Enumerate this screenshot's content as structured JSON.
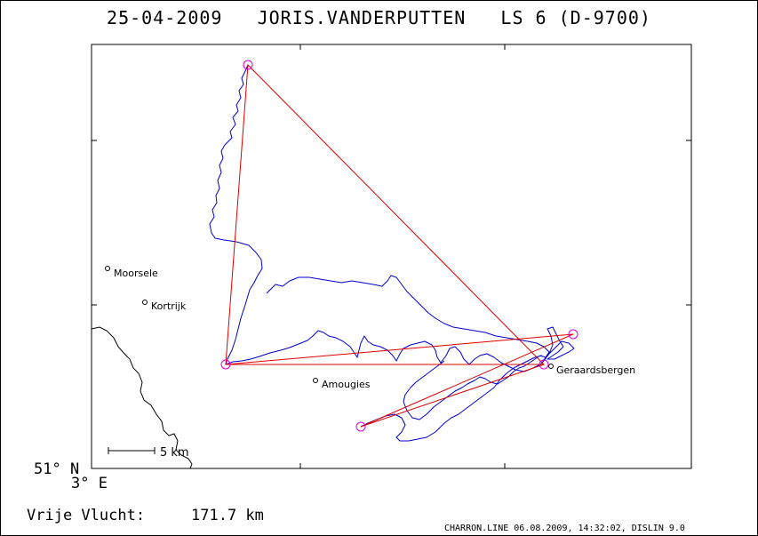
{
  "header": {
    "title": "25-04-2009   JORIS.VANDERPUTTEN   LS 6 (D-9700)"
  },
  "map": {
    "places": [
      {
        "name": "Moorsele"
      },
      {
        "name": "Kortrijk"
      },
      {
        "name": "Amougies"
      },
      {
        "name": "Geraardsbergen"
      }
    ],
    "scale_label": "5 km",
    "lat_label": "51° N",
    "lon_label": "3° E",
    "colors": {
      "track": "#0000cc",
      "route": "#dd0000",
      "turnpoint": "#dd00dd",
      "border": "#000000"
    }
  },
  "footer": {
    "distance_label": "Vrije Vlucht:",
    "distance_value": "171.7 km",
    "credit": "CHARRON.LINE 06.08.2009, 14:32:02, DISLIN 9.0"
  }
}
